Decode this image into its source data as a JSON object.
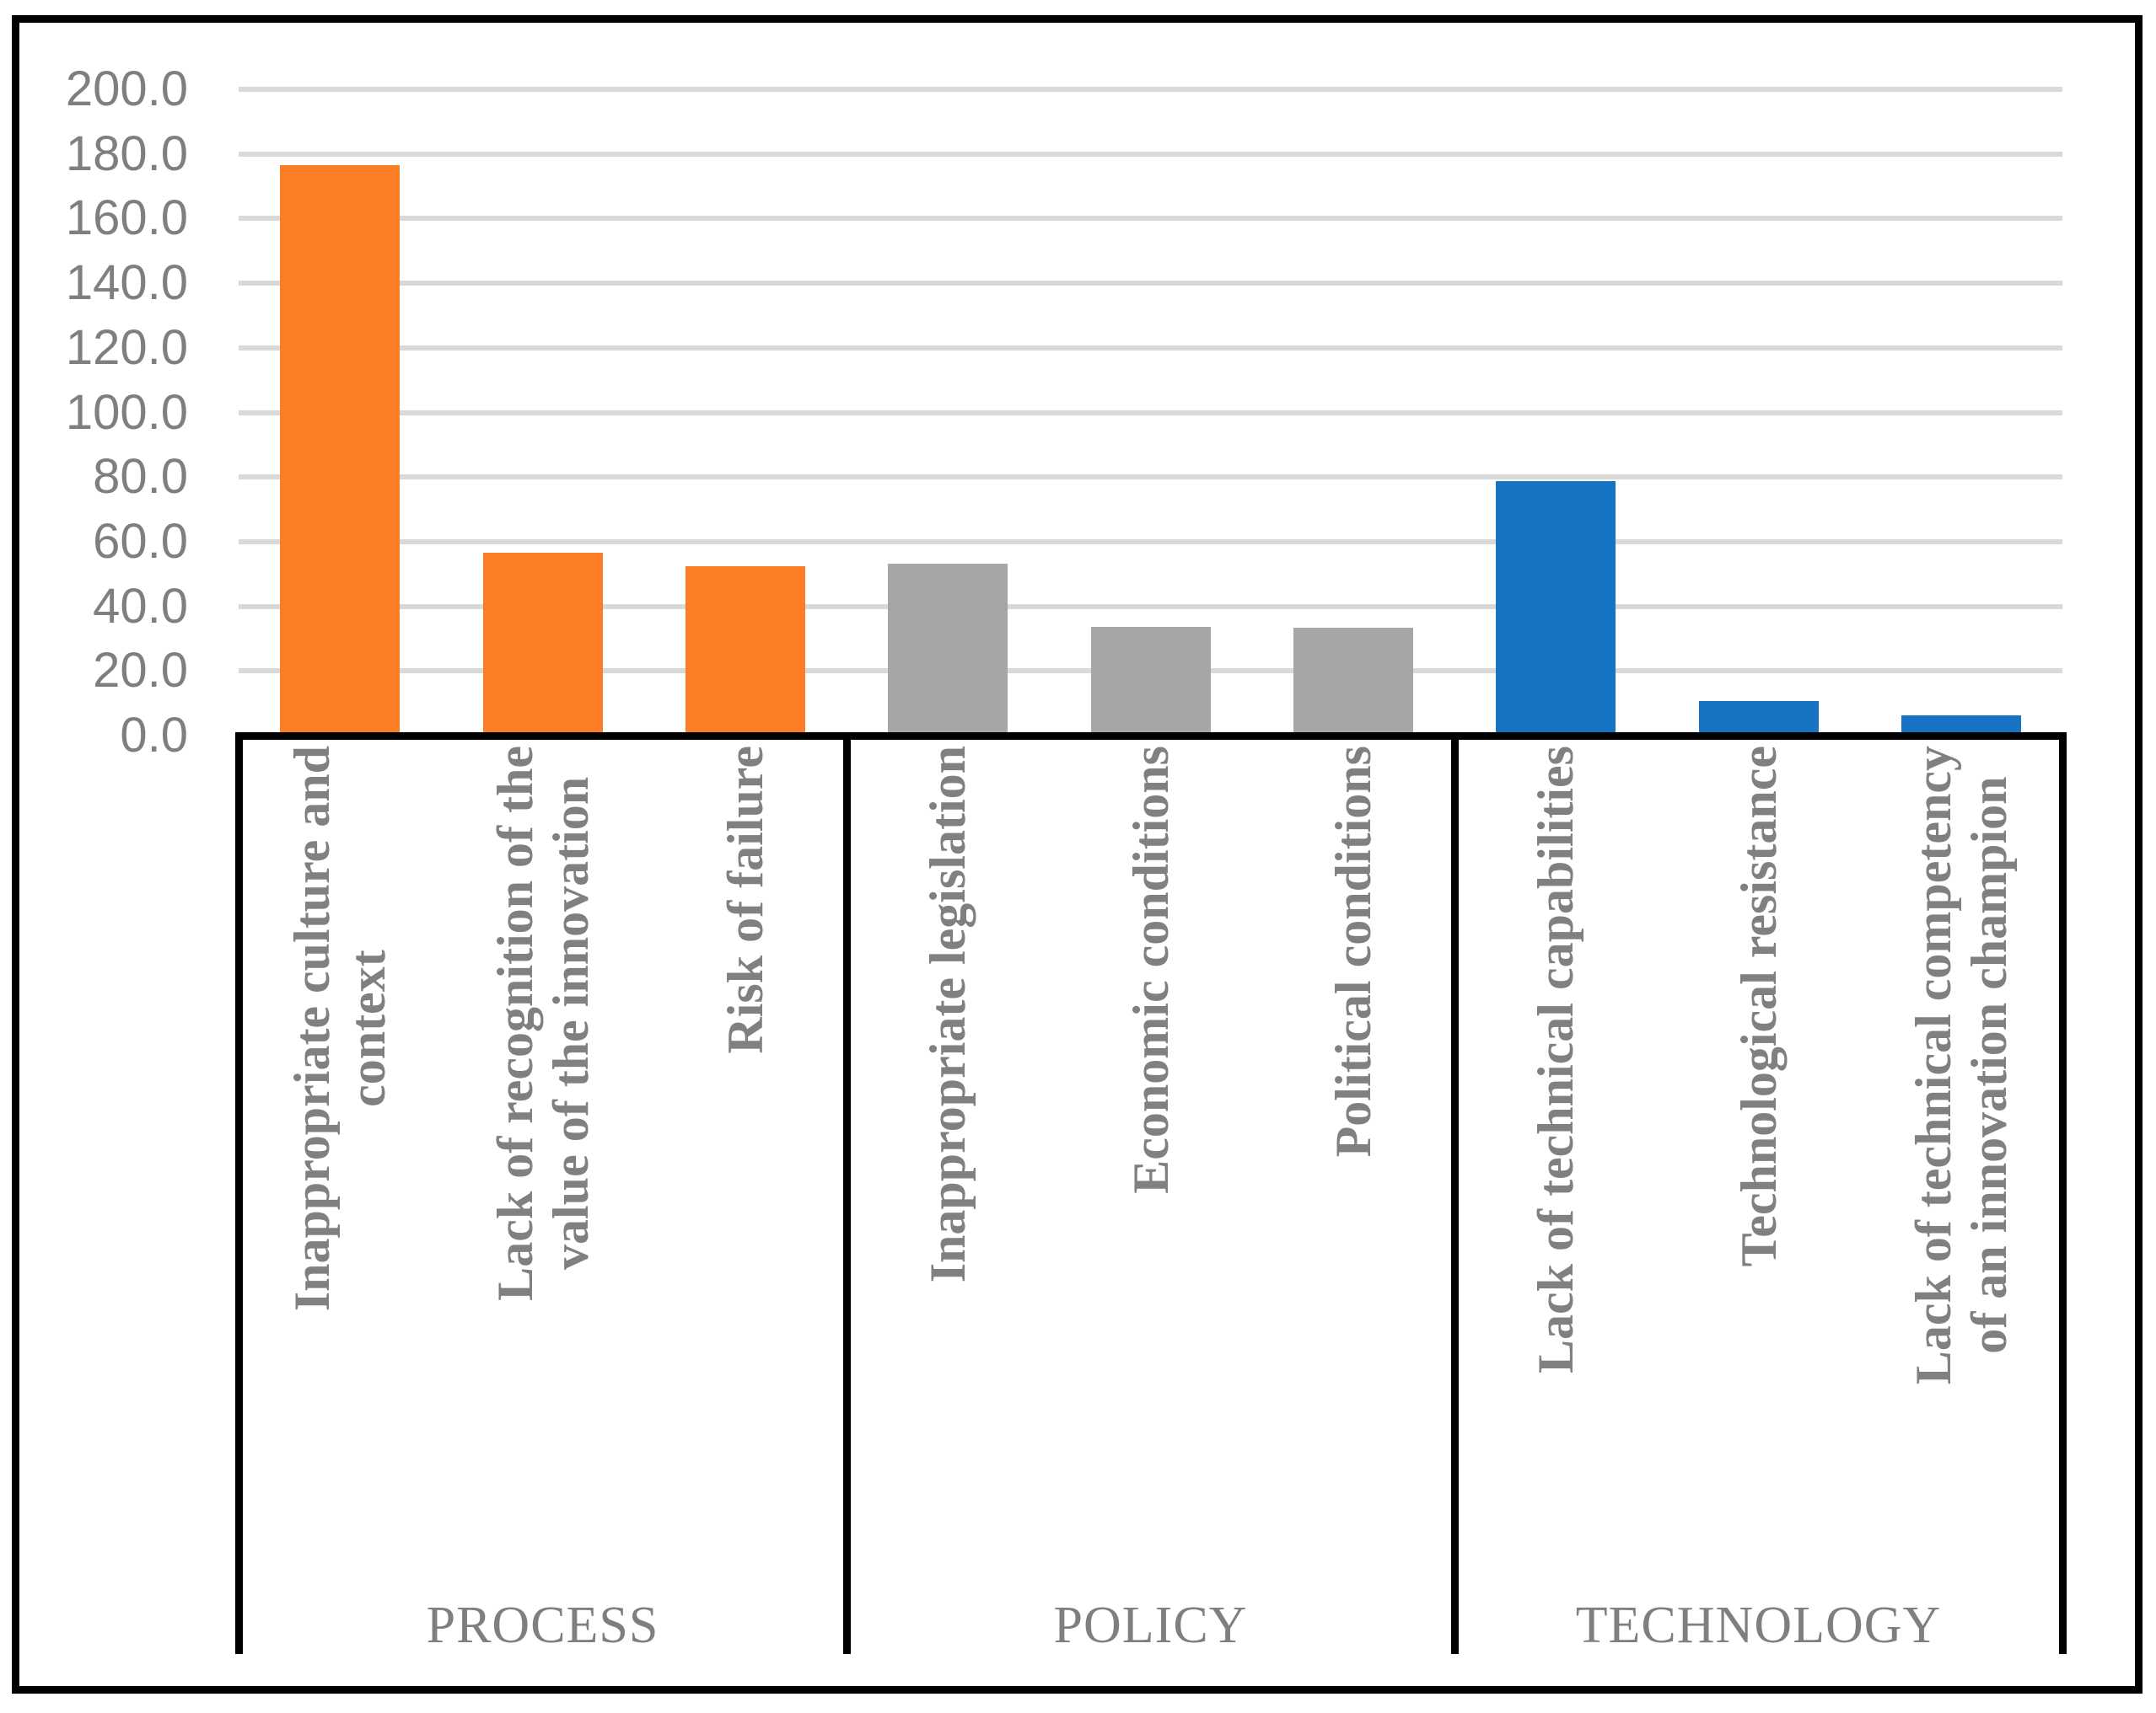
{
  "chart_data": {
    "type": "bar",
    "title": "",
    "xlabel": "",
    "ylabel": "",
    "ylim": [
      0,
      200
    ],
    "ytick_step": 20,
    "ytick_labels": [
      "200.0",
      "180.0",
      "160.0",
      "140.0",
      "120.0",
      "100.0",
      "80.0",
      "60.0",
      "40.0",
      "20.0",
      "0.0"
    ],
    "grid": true,
    "legend_position": "none",
    "categories": [
      "Inappropriate culture and\ncontext",
      "Lack of recognition of the\nvalue of the innovation",
      "Risk of failure",
      "Inappropriate legislation",
      "Economic conditions",
      "Political conditions",
      "Lack of technical capabilities",
      "Technological resistance",
      "Lack of technical competency\nof an innovation champion"
    ],
    "values": [
      176.6,
      56.6,
      52.4,
      53.2,
      33.6,
      33.4,
      78.7,
      10.7,
      6.3
    ],
    "groups": [
      {
        "name": "PROCESS",
        "color": "#fb7d24",
        "bars": [
          {
            "label": "Inappropriate culture and\ncontext",
            "value": 176.6
          },
          {
            "label": "Lack of recognition of the\nvalue of the innovation",
            "value": 56.6
          },
          {
            "label": "Risk of failure",
            "value": 52.4
          }
        ]
      },
      {
        "name": "POLICY",
        "color": "#a6a6a6",
        "bars": [
          {
            "label": "Inappropriate legislation",
            "value": 53.2
          },
          {
            "label": "Economic conditions",
            "value": 33.6
          },
          {
            "label": "Political conditions",
            "value": 33.4
          }
        ]
      },
      {
        "name": "TECHNOLOGY",
        "color": "#1773c4",
        "bars": [
          {
            "label": "Lack of technical capabilities",
            "value": 78.7
          },
          {
            "label": "Technological resistance",
            "value": 10.7
          },
          {
            "label": "Lack of technical competency\nof an innovation champion",
            "value": 6.3
          }
        ]
      }
    ],
    "colors": {
      "gridline": "#d9d9d9",
      "axis_line": "#000000",
      "tick_text": "#7f7f7f",
      "category_text": "#808080",
      "frame_border": "#000000",
      "background": "#ffffff"
    }
  }
}
